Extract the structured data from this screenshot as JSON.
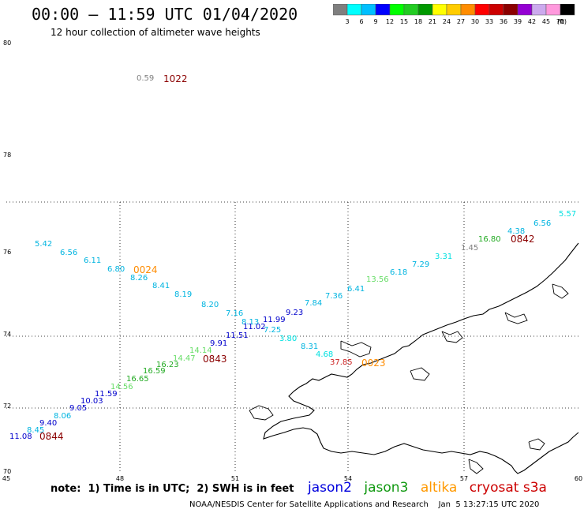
{
  "title": "00:00 – 11:59 UTC 01/04/2020",
  "subtitle": "12 hour collection of altimeter wave heights",
  "scale": {
    "unit": "(ft)",
    "colors": [
      "#7f7f7f",
      "#00ffff",
      "#00bfff",
      "#0000ff",
      "#00ff00",
      "#22cc22",
      "#009900",
      "#ffff00",
      "#ffcc00",
      "#ff8c00",
      "#ff0000",
      "#cc0000",
      "#8b0000",
      "#9400d3",
      "#ccaaee",
      "#ff99dd",
      "#000000"
    ],
    "labels": [
      "3",
      "6",
      "9",
      "12",
      "15",
      "18",
      "21",
      "24",
      "27",
      "30",
      "33",
      "36",
      "39",
      "42",
      "45",
      "70"
    ]
  },
  "map": {
    "lat_labels": [
      "70",
      "72",
      "74",
      "76",
      "78",
      "80"
    ],
    "lon_labels": [
      "45",
      "48",
      "51",
      "54",
      "57",
      "60"
    ]
  },
  "points": [
    {
      "text": "0.59",
      "color": "#808080"
    },
    {
      "text": "5.42",
      "color": "#00b4e0"
    },
    {
      "text": "6.56",
      "color": "#00b4e0"
    },
    {
      "text": "6.11",
      "color": "#00b4e0"
    },
    {
      "text": "6.80",
      "color": "#00b4e0"
    },
    {
      "text": "8.26",
      "color": "#00b4e0"
    },
    {
      "text": "8.41",
      "color": "#00b4e0"
    },
    {
      "text": "8.19",
      "color": "#00b4e0"
    },
    {
      "text": "8.20",
      "color": "#00b4e0"
    },
    {
      "text": "7.16",
      "color": "#00b4e0"
    },
    {
      "text": "8.13",
      "color": "#00b4e0"
    },
    {
      "text": "11.99",
      "color": "#0000cc"
    },
    {
      "text": "9.23",
      "color": "#0000cc"
    },
    {
      "text": "7.84",
      "color": "#00b4e0"
    },
    {
      "text": "7.36",
      "color": "#00b4e0"
    },
    {
      "text": "6.41",
      "color": "#00b4e0"
    },
    {
      "text": "13.56",
      "color": "#66dd66"
    },
    {
      "text": "6.18",
      "color": "#00b4e0"
    },
    {
      "text": "7.29",
      "color": "#00b4e0"
    },
    {
      "text": "3.31",
      "color": "#00e0e0"
    },
    {
      "text": "1.45",
      "color": "#808080"
    },
    {
      "text": "16.80",
      "color": "#22aa22"
    },
    {
      "text": "4.38",
      "color": "#00b4e0"
    },
    {
      "text": "6.56",
      "color": "#00b4e0"
    },
    {
      "text": "5.57",
      "color": "#00e0e0"
    },
    {
      "text": "11.51",
      "color": "#0000cc"
    },
    {
      "text": "11.02",
      "color": "#0000cc"
    },
    {
      "text": "7.25",
      "color": "#00b4e0"
    },
    {
      "text": "9.91",
      "color": "#0000cc"
    },
    {
      "text": "3.80",
      "color": "#00e0e0"
    },
    {
      "text": "8.31",
      "color": "#00b4e0"
    },
    {
      "text": "4.68",
      "color": "#00e0e0"
    },
    {
      "text": "37.85",
      "color": "#cc2222"
    },
    {
      "text": "14.14",
      "color": "#66dd66"
    },
    {
      "text": "14.47",
      "color": "#66dd66"
    },
    {
      "text": "16.23",
      "color": "#22aa22"
    },
    {
      "text": "16.59",
      "color": "#22aa22"
    },
    {
      "text": "16.65",
      "color": "#22aa22"
    },
    {
      "text": "14.56",
      "color": "#66dd66"
    },
    {
      "text": "11.59",
      "color": "#0000cc"
    },
    {
      "text": "10.03",
      "color": "#0000cc"
    },
    {
      "text": "9.05",
      "color": "#0000cc"
    },
    {
      "text": "8.06",
      "color": "#00b4e0"
    },
    {
      "text": "9.40",
      "color": "#0000cc"
    },
    {
      "text": "8.45",
      "color": "#00b4e0"
    },
    {
      "text": "11.08",
      "color": "#0000cc"
    }
  ],
  "times": [
    {
      "text": "1022",
      "color": "#8b0000"
    },
    {
      "text": "0024",
      "color": "#ff8c00"
    },
    {
      "text": "0842",
      "color": "#8b0000"
    },
    {
      "text": "0843",
      "color": "#8b0000"
    },
    {
      "text": "0023",
      "color": "#ff8c00"
    },
    {
      "text": "0844",
      "color": "#8b0000"
    }
  ],
  "note": "note:  1) Time is in UTC;  2) SWH is in feet",
  "satellites": [
    {
      "name": "jason2",
      "color": "#0000dd"
    },
    {
      "name": "jason3",
      "color": "#119911"
    },
    {
      "name": "altika",
      "color": "#ff9900"
    },
    {
      "name": "cryosat s3a",
      "color": "#cc0000"
    }
  ],
  "footer": "NOAA/NESDIS Center for Satellite Applications and Research    Jan  5 13:27:15 UTC 2020"
}
